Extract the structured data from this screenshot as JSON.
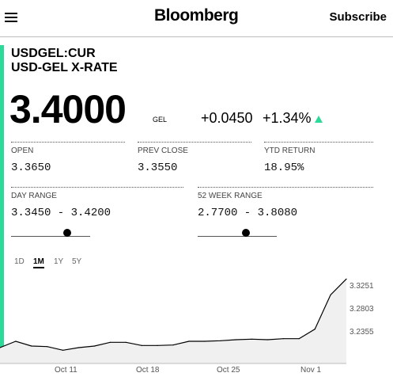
{
  "header": {
    "logo": "Bloomberg",
    "subscribe_label": "Subscribe"
  },
  "quote": {
    "symbol": "USDGEL:CUR",
    "name": "USD-GEL X-RATE",
    "price": "3.4000",
    "currency": "GEL",
    "change": "+0.0450",
    "change_pct": "+1.34%",
    "direction_color": "#2bd999"
  },
  "stats": {
    "open_label": "OPEN",
    "open_value": "3.3650",
    "prev_close_label": "PREV CLOSE",
    "prev_close_value": "3.3550",
    "ytd_label": "YTD RETURN",
    "ytd_value": "18.95%",
    "day_range_label": "DAY RANGE",
    "day_range_value": "3.3450 - 3.4200",
    "week52_label": "52 WEEK RANGE",
    "week52_value": "2.7700 - 3.8080"
  },
  "tabs": [
    "1D",
    "1M",
    "1Y",
    "5Y"
  ],
  "active_tab": "1M",
  "chart_data": {
    "type": "area",
    "x": [
      "Oct 5",
      "Oct 6",
      "Oct 7",
      "Oct 8",
      "Oct 9",
      "Oct 12",
      "Oct 13",
      "Oct 14",
      "Oct 15",
      "Oct 16",
      "Oct 19",
      "Oct 20",
      "Oct 21",
      "Oct 22",
      "Oct 23",
      "Oct 26",
      "Oct 27",
      "Oct 28",
      "Oct 29",
      "Oct 30",
      "Nov 2",
      "Nov 3",
      "Nov 4"
    ],
    "values": [
      3.21,
      3.222,
      3.213,
      3.212,
      3.205,
      3.21,
      3.213,
      3.22,
      3.22,
      3.214,
      3.214,
      3.215,
      3.222,
      3.222,
      3.223,
      3.225,
      3.226,
      3.225,
      3.227,
      3.227,
      3.245,
      3.31,
      3.34
    ],
    "x_tick_labels": [
      "Oct 11",
      "Oct 18",
      "Oct 25",
      "Nov 1"
    ],
    "y_tick_labels": [
      "3.3251",
      "3.2803",
      "3.2355"
    ],
    "ylim": [
      3.18,
      3.345
    ],
    "fill_color": "#f0f0f0",
    "line_color": "#000000"
  }
}
